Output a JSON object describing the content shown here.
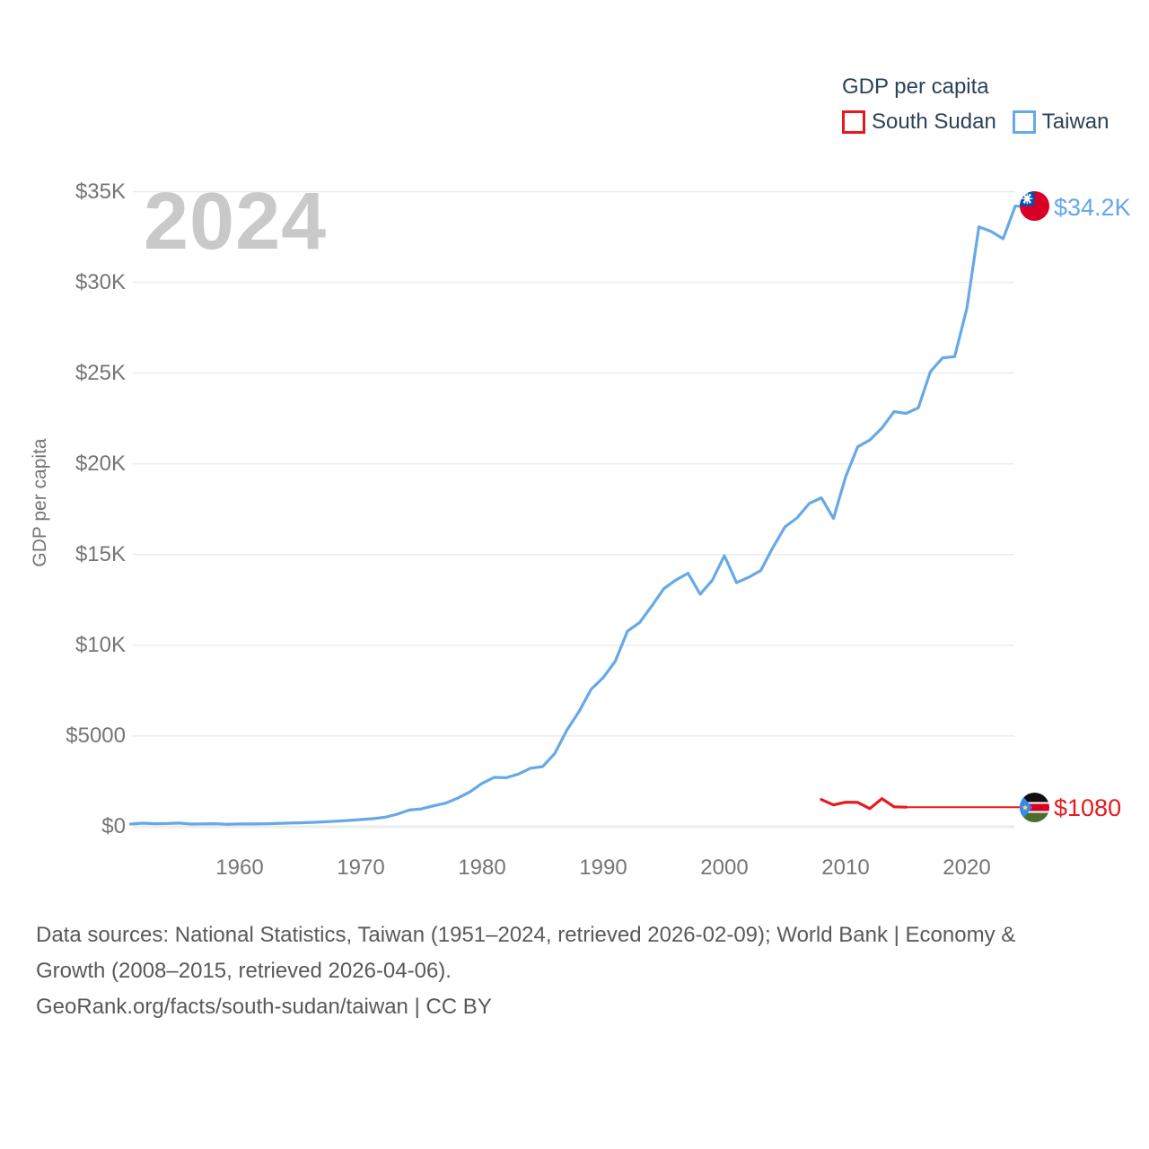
{
  "watermark": "2024",
  "legend": {
    "title": "GDP per capita",
    "items": [
      {
        "label": "South Sudan",
        "color": "#e8191d"
      },
      {
        "label": "Taiwan",
        "color": "#67a9e6"
      }
    ]
  },
  "y_axis_title": "GDP per capita",
  "footer": {
    "line1": "Data sources: National Statistics, Taiwan (1951–2024, retrieved 2026-02-09); World Bank | Economy &",
    "line2": "Growth (2008–2015, retrieved 2026-04-06).",
    "line3": "GeoRank.org/facts/south-sudan/taiwan | CC BY"
  },
  "chart_data": {
    "type": "line",
    "title": "GDP per capita",
    "ylabel": "GDP per capita",
    "xlim": [
      1951,
      2024
    ],
    "ylim": [
      0,
      35000
    ],
    "grid": "horizontal",
    "legend_position": "top-right",
    "y_ticks": [
      {
        "label": "$0",
        "value": 0
      },
      {
        "label": "$5000",
        "value": 5000
      },
      {
        "label": "$10K",
        "value": 10000
      },
      {
        "label": "$15K",
        "value": 15000
      },
      {
        "label": "$20K",
        "value": 20000
      },
      {
        "label": "$25K",
        "value": 25000
      },
      {
        "label": "$30K",
        "value": 30000
      },
      {
        "label": "$35K",
        "value": 35000
      }
    ],
    "x_ticks": [
      {
        "label": "1960",
        "value": 1960
      },
      {
        "label": "1970",
        "value": 1970
      },
      {
        "label": "1980",
        "value": 1980
      },
      {
        "label": "1990",
        "value": 1990
      },
      {
        "label": "2000",
        "value": 2000
      },
      {
        "label": "2010",
        "value": 2010
      },
      {
        "label": "2020",
        "value": 2020
      }
    ],
    "series": [
      {
        "name": "Taiwan",
        "color": "#67a9e6",
        "end_label": "$34.2K",
        "end_value": 34200,
        "years": [
          1951,
          1952,
          1953,
          1954,
          1955,
          1956,
          1957,
          1958,
          1959,
          1960,
          1961,
          1962,
          1963,
          1964,
          1965,
          1966,
          1967,
          1968,
          1969,
          1970,
          1971,
          1972,
          1973,
          1974,
          1975,
          1976,
          1977,
          1978,
          1979,
          1980,
          1981,
          1982,
          1983,
          1984,
          1985,
          1986,
          1987,
          1988,
          1989,
          1990,
          1991,
          1992,
          1993,
          1994,
          1995,
          1996,
          1997,
          1998,
          1999,
          2000,
          2001,
          2002,
          2003,
          2004,
          2005,
          2006,
          2007,
          2008,
          2009,
          2010,
          2011,
          2012,
          2013,
          2014,
          2015,
          2016,
          2017,
          2018,
          2019,
          2020,
          2021,
          2022,
          2023,
          2024
        ],
        "values": [
          150,
          200,
          170,
          180,
          205,
          150,
          160,
          170,
          135,
          160,
          155,
          165,
          180,
          205,
          220,
          240,
          270,
          305,
          345,
          395,
          445,
          525,
          695,
          920,
          985,
          1155,
          1300,
          1580,
          1920,
          2390,
          2720,
          2700,
          2905,
          3225,
          3315,
          4035,
          5325,
          6340,
          7575,
          8215,
          9125,
          10780,
          11250,
          12160,
          13120,
          13600,
          13970,
          12820,
          13585,
          14940,
          13450,
          13750,
          14120,
          15390,
          16530,
          17025,
          17815,
          18130,
          16990,
          19280,
          20940,
          21310,
          21975,
          22875,
          22780,
          23090,
          25080,
          25840,
          25910,
          28550,
          33060,
          32810,
          32405,
          34200
        ]
      },
      {
        "name": "South Sudan",
        "color": "#e8191d",
        "end_label": "$1080",
        "end_value": 1080,
        "observed_until": 2015,
        "years": [
          2008,
          2009,
          2010,
          2011,
          2012,
          2013,
          2014,
          2015,
          2016,
          2017,
          2018,
          2019,
          2020,
          2021,
          2022,
          2023,
          2024
        ],
        "values": [
          1500,
          1200,
          1350,
          1340,
          1000,
          1550,
          1100,
          1080,
          1080,
          1080,
          1080,
          1080,
          1080,
          1080,
          1080,
          1080,
          1080
        ]
      }
    ]
  }
}
